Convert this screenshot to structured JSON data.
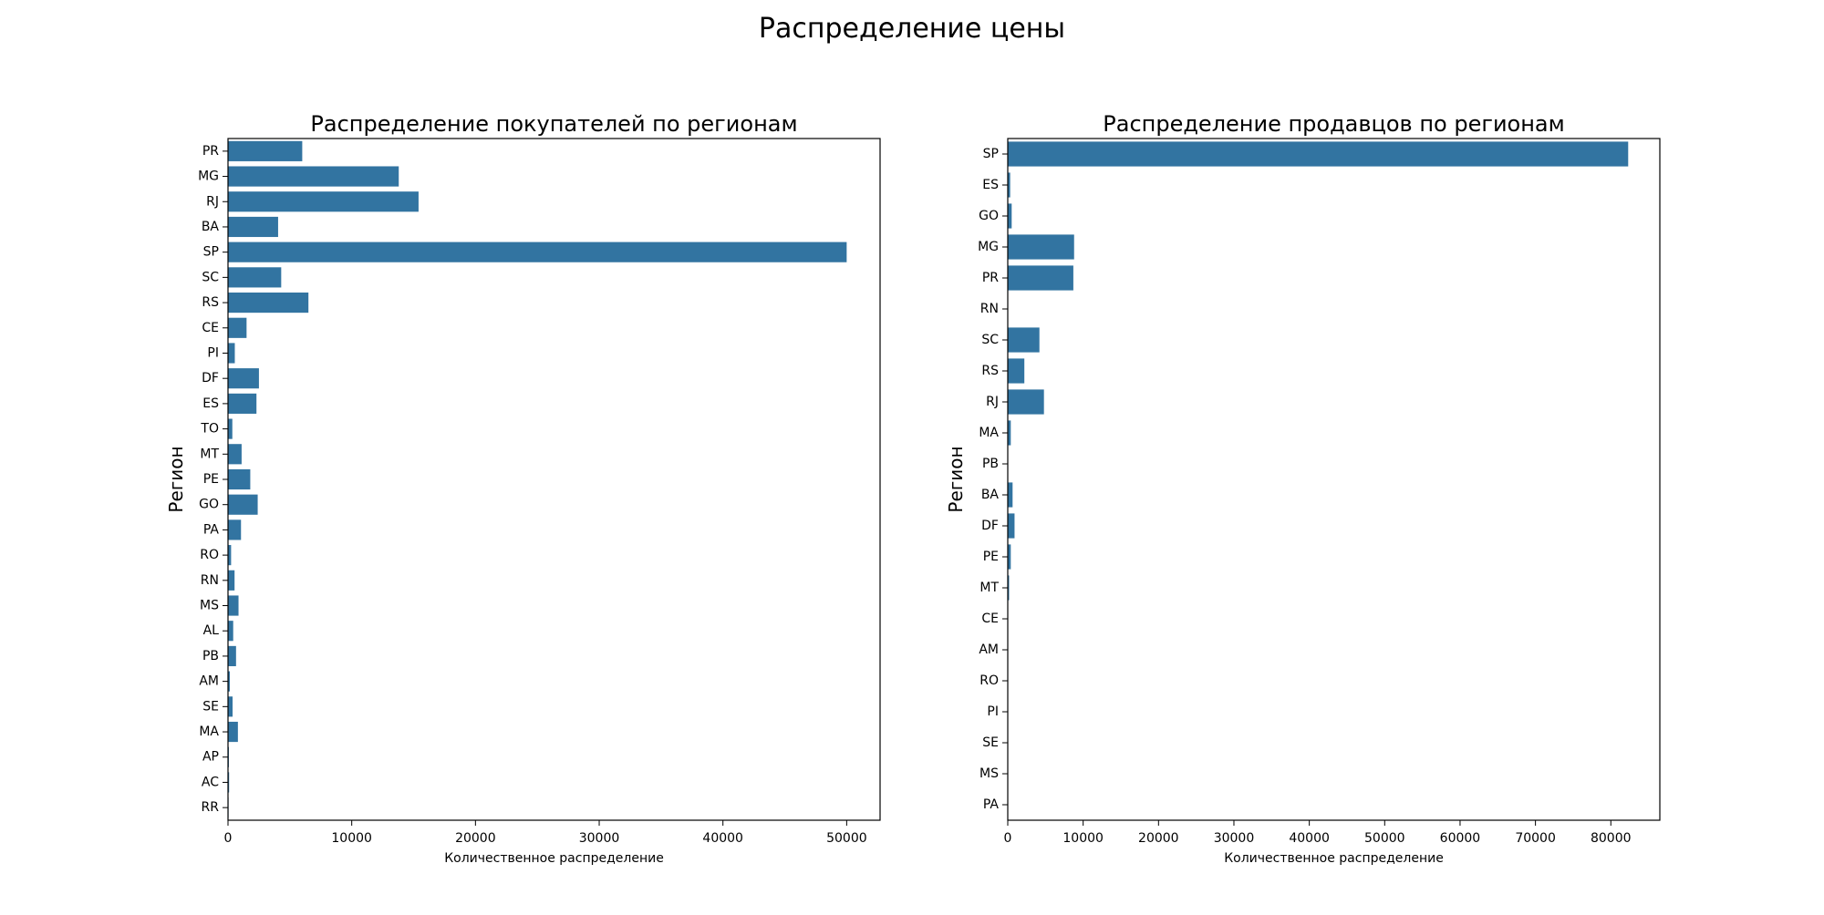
{
  "figure": {
    "suptitle": "Распределение цены"
  },
  "chart_data": [
    {
      "type": "bar",
      "orientation": "horizontal",
      "title": "Распределение покупателей по регионам",
      "xlabel": "Количественное распределение",
      "ylabel": "Регион",
      "xlim": [
        0,
        52700
      ],
      "xticks": [
        0,
        10000,
        20000,
        30000,
        40000,
        50000
      ],
      "bar_color": "#3274a1",
      "categories": [
        "PR",
        "MG",
        "RJ",
        "BA",
        "SP",
        "SC",
        "RS",
        "CE",
        "PI",
        "DF",
        "ES",
        "TO",
        "MT",
        "PE",
        "GO",
        "PA",
        "RO",
        "RN",
        "MS",
        "AL",
        "PB",
        "AM",
        "SE",
        "MA",
        "AP",
        "AC",
        "RR"
      ],
      "values": [
        6000,
        13800,
        15400,
        4050,
        50000,
        4300,
        6500,
        1500,
        550,
        2500,
        2300,
        350,
        1100,
        1800,
        2400,
        1050,
        250,
        530,
        850,
        420,
        650,
        150,
        370,
        800,
        70,
        90,
        45
      ]
    },
    {
      "type": "bar",
      "orientation": "horizontal",
      "title": "Распределение продавцов по регионам",
      "xlabel": "Количественное распределение",
      "ylabel": "Регион",
      "xlim": [
        0,
        86500
      ],
      "xticks": [
        0,
        10000,
        20000,
        30000,
        40000,
        50000,
        60000,
        70000,
        80000
      ],
      "bar_color": "#3274a1",
      "categories": [
        "SP",
        "ES",
        "GO",
        "MG",
        "PR",
        "RN",
        "SC",
        "RS",
        "RJ",
        "MA",
        "PB",
        "BA",
        "DF",
        "PE",
        "MT",
        "CE",
        "AM",
        "RO",
        "PI",
        "SE",
        "MS",
        "PA"
      ],
      "values": [
        82300,
        320,
        520,
        8800,
        8700,
        55,
        4200,
        2200,
        4800,
        400,
        40,
        640,
        900,
        400,
        180,
        60,
        15,
        15,
        10,
        10,
        25,
        10
      ]
    }
  ]
}
